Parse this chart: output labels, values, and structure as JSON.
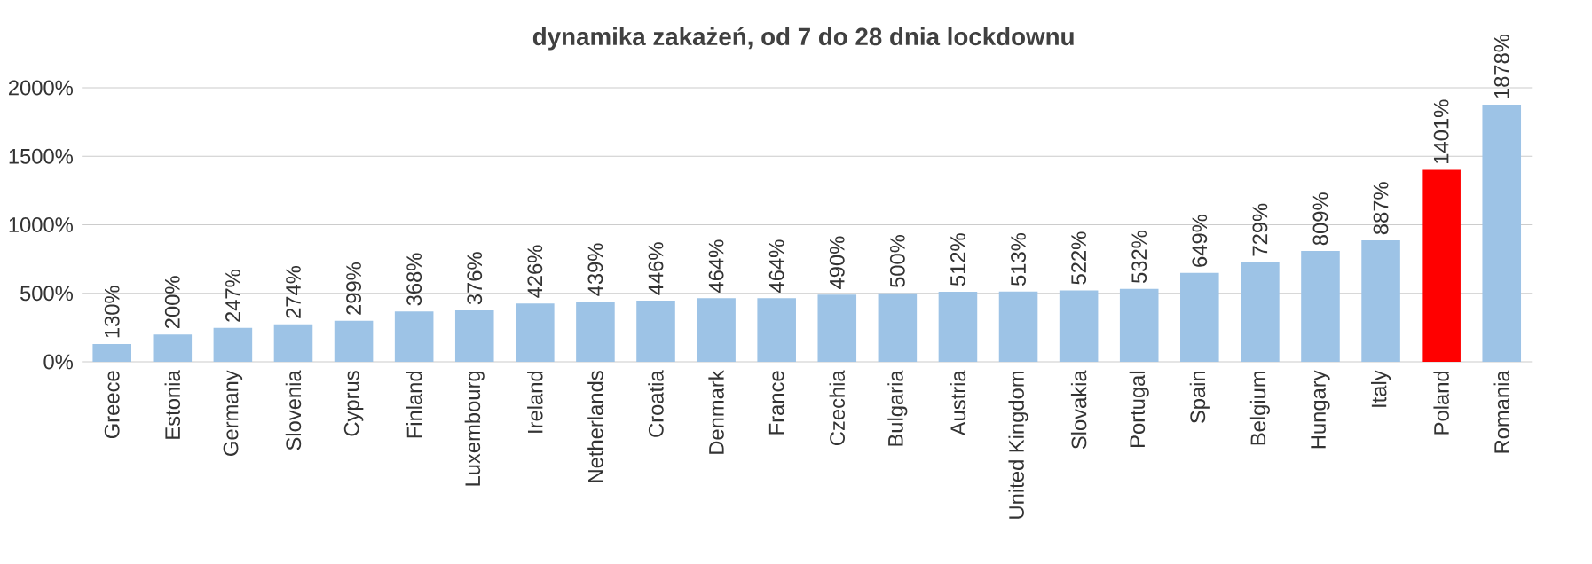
{
  "chart_data": {
    "type": "bar",
    "title": "dynamika zakażeń, od 7 do 28 dnia lockdownu",
    "categories": [
      "Greece",
      "Estonia",
      "Germany",
      "Slovenia",
      "Cyprus",
      "Finland",
      "Luxembourg",
      "Ireland",
      "Netherlands",
      "Croatia",
      "Denmark",
      "France",
      "Czechia",
      "Bulgaria",
      "Austria",
      "United Kingdom",
      "Slovakia",
      "Portugal",
      "Spain",
      "Belgium",
      "Hungary",
      "Italy",
      "Poland",
      "Romania"
    ],
    "values": [
      130,
      200,
      247,
      274,
      299,
      368,
      376,
      426,
      439,
      446,
      464,
      464,
      490,
      500,
      512,
      513,
      522,
      532,
      649,
      729,
      809,
      887,
      1401,
      1878
    ],
    "value_labels": [
      "130%",
      "200%",
      "247%",
      "274%",
      "299%",
      "368%",
      "376%",
      "426%",
      "439%",
      "446%",
      "464%",
      "464%",
      "490%",
      "500%",
      "512%",
      "513%",
      "522%",
      "532%",
      "649%",
      "729%",
      "809%",
      "887%",
      "1401%",
      "1878%"
    ],
    "colors": [
      "#9dc3e6",
      "#9dc3e6",
      "#9dc3e6",
      "#9dc3e6",
      "#9dc3e6",
      "#9dc3e6",
      "#9dc3e6",
      "#9dc3e6",
      "#9dc3e6",
      "#9dc3e6",
      "#9dc3e6",
      "#9dc3e6",
      "#9dc3e6",
      "#9dc3e6",
      "#9dc3e6",
      "#9dc3e6",
      "#9dc3e6",
      "#9dc3e6",
      "#9dc3e6",
      "#9dc3e6",
      "#9dc3e6",
      "#9dc3e6",
      "#ff0000",
      "#9dc3e6"
    ],
    "ylim": [
      0,
      2000
    ],
    "yticks": [
      {
        "value": 0,
        "label": "0%"
      },
      {
        "value": 500,
        "label": "500%"
      },
      {
        "value": 1000,
        "label": "1000%"
      },
      {
        "value": 1500,
        "label": "1500%"
      },
      {
        "value": 2000,
        "label": "2000%"
      }
    ],
    "grid": "y"
  }
}
